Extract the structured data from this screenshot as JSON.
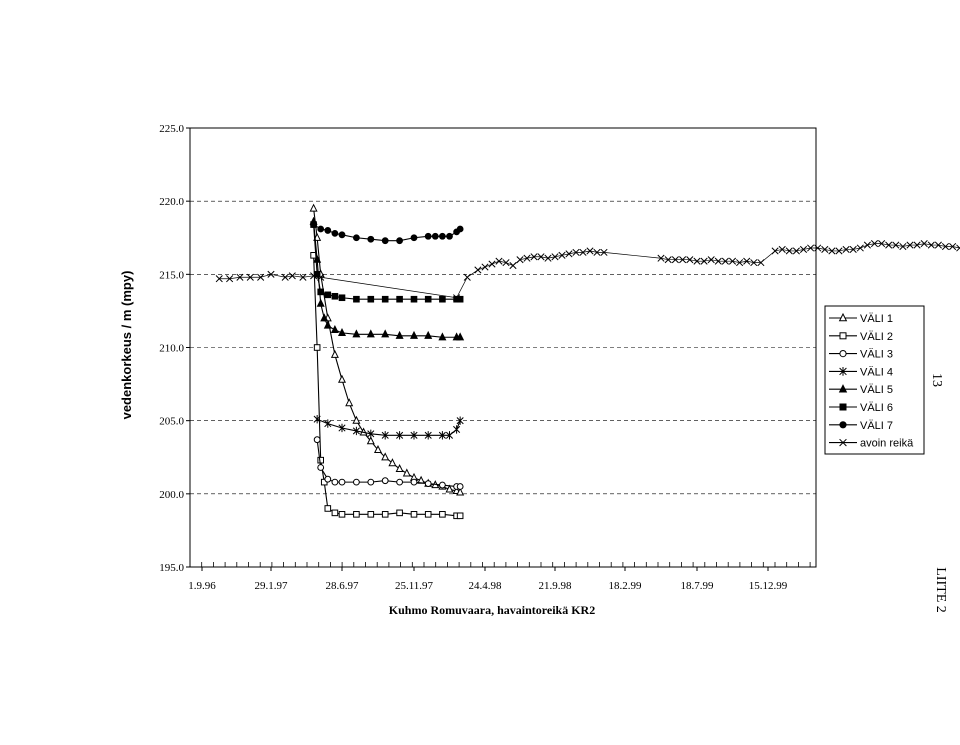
{
  "chart_data": {
    "type": "line",
    "title": "",
    "xlabel": "Kuhmo Romuvaara, havaintoreikä KR2",
    "ylabel": "vedenkorkeus / m (mpy)",
    "ylim": [
      195.0,
      225.0
    ],
    "y_ticks": [
      "195.0",
      "200.0",
      "205.0",
      "210.0",
      "215.0",
      "220.0",
      "225.0"
    ],
    "x_ticks": [
      "1.9.96",
      "29.1.97",
      "28.6.97",
      "25.11.97",
      "24.4.98",
      "21.9.98",
      "18.2.99",
      "18.7.99",
      "15.12.99"
    ],
    "grid": true,
    "legend_position": "right",
    "series": [
      {
        "name": "VÄLI 1",
        "marker": "triangle-open",
        "x": [
          1.6,
          1.65,
          1.7,
          1.8,
          1.9,
          2.0,
          2.1,
          2.2,
          2.3,
          2.4,
          2.5,
          2.6,
          2.7,
          2.8,
          2.9,
          3.0,
          3.1,
          3.2,
          3.3,
          3.4,
          3.5,
          3.6,
          3.65
        ],
        "y": [
          219.5,
          217.5,
          215.0,
          212.0,
          209.5,
          207.8,
          206.2,
          205.0,
          204.2,
          203.6,
          203.0,
          202.5,
          202.1,
          201.7,
          201.4,
          201.1,
          200.9,
          200.7,
          200.6,
          200.5,
          200.3,
          200.2,
          200.1
        ]
      },
      {
        "name": "VÄLI 2",
        "marker": "square-open",
        "x": [
          1.6,
          1.65,
          1.7,
          1.75,
          1.8,
          1.9,
          2.0,
          2.2,
          2.4,
          2.6,
          2.8,
          3.0,
          3.2,
          3.4,
          3.6,
          3.65
        ],
        "y": [
          216.3,
          210.0,
          202.3,
          200.8,
          199.0,
          198.7,
          198.6,
          198.6,
          198.6,
          198.6,
          198.7,
          198.6,
          198.6,
          198.6,
          198.5,
          198.5
        ]
      },
      {
        "name": "VÄLI 3",
        "marker": "circle-open",
        "x": [
          1.65,
          1.7,
          1.8,
          1.9,
          2.0,
          2.2,
          2.4,
          2.6,
          2.8,
          3.0,
          3.2,
          3.4,
          3.6,
          3.65
        ],
        "y": [
          203.7,
          201.8,
          201.0,
          200.8,
          200.8,
          200.8,
          200.8,
          200.9,
          200.8,
          200.8,
          200.7,
          200.6,
          200.5,
          200.5
        ]
      },
      {
        "name": "VÄLI 4",
        "marker": "star",
        "x": [
          1.65,
          1.8,
          2.0,
          2.2,
          2.4,
          2.6,
          2.8,
          3.0,
          3.2,
          3.4,
          3.5,
          3.6,
          3.65
        ],
        "y": [
          205.1,
          204.8,
          204.5,
          204.3,
          204.1,
          204.0,
          204.0,
          204.0,
          204.0,
          204.0,
          204.0,
          204.4,
          205.0
        ]
      },
      {
        "name": "VÄLI 5",
        "marker": "triangle-filled",
        "x": [
          1.6,
          1.65,
          1.7,
          1.75,
          1.8,
          1.9,
          2.0,
          2.2,
          2.4,
          2.6,
          2.8,
          3.0,
          3.2,
          3.4,
          3.6,
          3.65
        ],
        "y": [
          218.6,
          216.0,
          213.0,
          212.0,
          211.5,
          211.2,
          211.0,
          210.9,
          210.9,
          210.9,
          210.8,
          210.8,
          210.8,
          210.7,
          210.7,
          210.7
        ]
      },
      {
        "name": "VÄLI 6",
        "marker": "square-filled",
        "x": [
          1.6,
          1.65,
          1.7,
          1.8,
          1.9,
          2.0,
          2.2,
          2.4,
          2.6,
          2.8,
          3.0,
          3.2,
          3.4,
          3.6,
          3.65
        ],
        "y": [
          218.4,
          215.0,
          213.8,
          213.6,
          213.5,
          213.4,
          213.3,
          213.3,
          213.3,
          213.3,
          213.3,
          213.3,
          213.3,
          213.3,
          213.3
        ]
      },
      {
        "name": "VÄLI 7",
        "marker": "circle-filled",
        "x": [
          1.6,
          1.7,
          1.8,
          1.9,
          2.0,
          2.2,
          2.4,
          2.6,
          2.8,
          3.0,
          3.2,
          3.3,
          3.4,
          3.5,
          3.6,
          3.65
        ],
        "y": [
          218.4,
          218.1,
          218.0,
          217.8,
          217.7,
          217.5,
          217.4,
          217.3,
          217.3,
          217.5,
          217.6,
          217.6,
          217.6,
          217.6,
          217.9,
          218.1
        ]
      },
      {
        "name": "avoin reikä",
        "marker": "x",
        "x": [
          0.25,
          0.4,
          0.55,
          0.7,
          0.85,
          1.0,
          1.2,
          1.3,
          1.45,
          1.6,
          1.7,
          3.6,
          3.75,
          3.9,
          4.0,
          4.1,
          4.2,
          4.3,
          4.4,
          4.5,
          4.6,
          4.7,
          4.8,
          4.9,
          5.0,
          5.1,
          5.2,
          5.3,
          5.4,
          5.5,
          5.6,
          5.7,
          6.5,
          6.6,
          6.7,
          6.8,
          6.9,
          7.0,
          7.1,
          7.2,
          7.3,
          7.4,
          7.5,
          7.6,
          7.7,
          7.8,
          7.9,
          8.1,
          8.2,
          8.3,
          8.4,
          8.5,
          8.6,
          8.7,
          8.8,
          8.9,
          9.0,
          9.1,
          9.2,
          9.3,
          9.4,
          9.5,
          9.6,
          9.7,
          9.8,
          9.9,
          10.0,
          10.1,
          10.2,
          10.3,
          10.4,
          10.5,
          10.6,
          10.7,
          10.8,
          10.9,
          11.0,
          11.1,
          11.2,
          11.3,
          11.4,
          11.5,
          11.6,
          11.7,
          11.8,
          11.9,
          12.0,
          12.1,
          12.2,
          12.3,
          12.4,
          12.5,
          12.6,
          12.7,
          12.8,
          12.9,
          13.0,
          13.1,
          13.2,
          13.3,
          13.4,
          13.5,
          13.6,
          13.7,
          13.8,
          13.9,
          14.0,
          14.3,
          14.6,
          14.9,
          15.2,
          15.5,
          15.8,
          16.1,
          16.5,
          16.9
        ],
        "y": [
          214.7,
          214.7,
          214.8,
          214.8,
          214.8,
          215.0,
          214.8,
          214.9,
          214.8,
          214.9,
          214.8,
          213.4,
          214.8,
          215.3,
          215.5,
          215.7,
          215.9,
          215.8,
          215.6,
          216.0,
          216.1,
          216.2,
          216.2,
          216.1,
          216.2,
          216.3,
          216.4,
          216.5,
          216.5,
          216.6,
          216.5,
          216.5,
          216.1,
          216.0,
          216.0,
          216.0,
          216.0,
          215.9,
          215.9,
          216.0,
          215.9,
          215.9,
          215.9,
          215.8,
          215.9,
          215.8,
          215.8,
          216.6,
          216.7,
          216.6,
          216.6,
          216.7,
          216.8,
          216.8,
          216.7,
          216.6,
          216.6,
          216.7,
          216.7,
          216.8,
          217.0,
          217.1,
          217.1,
          217.0,
          217.0,
          216.9,
          217.0,
          217.0,
          217.1,
          217.0,
          217.0,
          216.9,
          216.9,
          216.8,
          216.7,
          216.7,
          216.6,
          216.6,
          216.6,
          216.5,
          216.4,
          216.4,
          216.3,
          216.3,
          216.2,
          216.2,
          216.2,
          216.2,
          216.1,
          216.0,
          216.1,
          216.5,
          216.9,
          217.5,
          216.8,
          216.8,
          216.8,
          216.9,
          216.9,
          216.8,
          216.8,
          216.8,
          216.8,
          216.8,
          216.8,
          216.9,
          216.9,
          216.8,
          216.9,
          216.8,
          216.7,
          216.8,
          217.0,
          217.1,
          217.2,
          217.1
        ]
      }
    ]
  },
  "side_labels": {
    "page_number": "13",
    "appendix": "LIITE 2"
  }
}
